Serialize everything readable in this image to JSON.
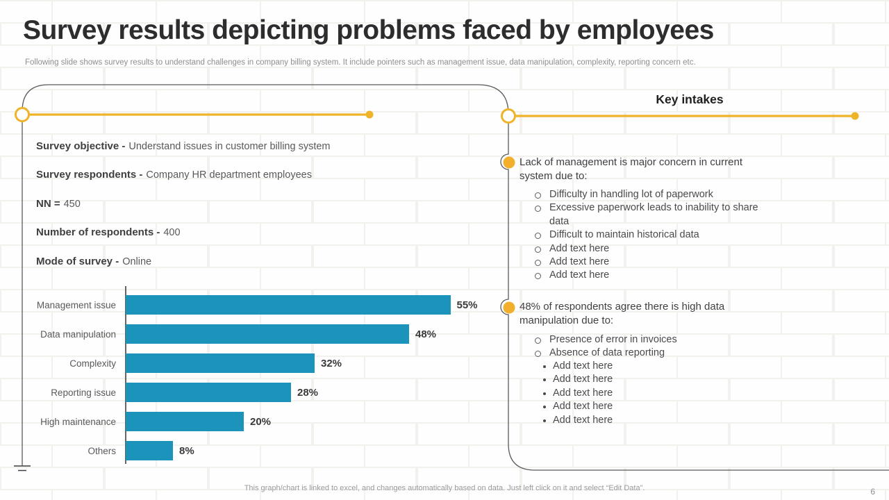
{
  "header": {
    "title": "Survey results depicting problems faced by employees",
    "subtitle": "Following slide shows survey results to understand challenges in company billing system. It include pointers such as management issue, data manipulation, complexity, reporting concern etc."
  },
  "survey_info": {
    "items": [
      {
        "label": "Survey objective -",
        "value": "Understand issues in customer billing system"
      },
      {
        "label": "Survey respondents -",
        "value": "Company HR department employees"
      },
      {
        "label": "NN =",
        "value": "450"
      },
      {
        "label": "Number of respondents -",
        "value": "400"
      },
      {
        "label": "Mode of survey -",
        "value": "Online"
      }
    ]
  },
  "chart_data": {
    "type": "bar",
    "orientation": "horizontal",
    "title": "",
    "categories": [
      "Management issue",
      "Data manipulation",
      "Complexity",
      "Reporting issue",
      "High maintenance",
      "Others"
    ],
    "values": [
      55,
      48,
      32,
      28,
      20,
      8
    ],
    "value_labels": [
      "55%",
      "48%",
      "32%",
      "28%",
      "20%",
      "8%"
    ],
    "xlim": [
      0,
      60
    ],
    "grid": false,
    "legend": false,
    "bar_color": "#1B93BB"
  },
  "key_intakes": {
    "title": "Key intakes",
    "blocks": [
      {
        "text": "Lack of management is major concern in current system due to:",
        "sub_items": [
          "Difficulty in handling lot of paperwork",
          "Excessive paperwork leads to inability to share data",
          "Difficult to maintain historical data",
          "Add text here",
          "Add text here",
          "Add text here"
        ]
      },
      {
        "text": "48% of respondents agree there is high data manipulation due to:",
        "sub_items": [
          "Presence of error in invoices",
          "Absence of data reporting"
        ],
        "sub_sub_items": [
          "Add text here",
          "Add text here",
          "Add text here",
          "Add text here",
          "Add text here"
        ]
      }
    ]
  },
  "footer": {
    "note": "This graph/chart is linked to excel,  and changes automatically based on data. Just left click on it and select “Edit Data”.",
    "page_number": "6"
  },
  "colors": {
    "accent_yellow": "#EFB32A",
    "bar_teal": "#1B93BB",
    "outline_gray": "#5a5a5a"
  }
}
